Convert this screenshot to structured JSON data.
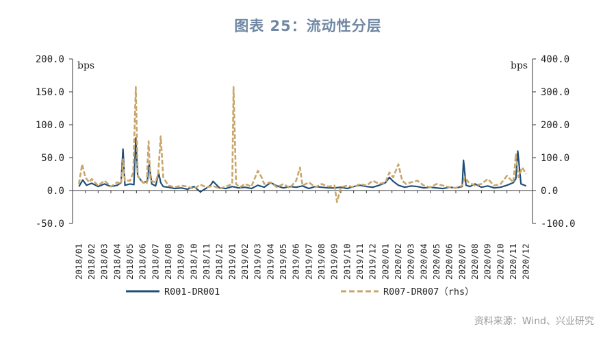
{
  "chart_data": {
    "type": "line",
    "title": "图表 25：流动性分层",
    "unit_left": "bps",
    "unit_right": "bps",
    "yleft": {
      "lim": [
        -50,
        200
      ],
      "ticks": [
        "-50.0",
        "0.0",
        "50.0",
        "100.0",
        "150.0",
        "200.0"
      ],
      "tick_values": [
        -50,
        0,
        50,
        100,
        150,
        200
      ]
    },
    "yright": {
      "lim": [
        -100,
        400
      ],
      "ticks": [
        "-100.0",
        "0.0",
        "100.0",
        "200.0",
        "300.0",
        "400.0"
      ],
      "tick_values": [
        -100,
        0,
        100,
        200,
        300,
        400
      ]
    },
    "x_categories": [
      "2018/01",
      "2018/02",
      "2018/03",
      "2018/04",
      "2018/05",
      "2018/06",
      "2018/07",
      "2018/08",
      "2018/09",
      "2018/10",
      "2018/11",
      "2018/12",
      "2019/01",
      "2019/02",
      "2019/03",
      "2019/04",
      "2019/05",
      "2019/06",
      "2019/07",
      "2019/08",
      "2019/09",
      "2019/10",
      "2019/11",
      "2019/12",
      "2020/01",
      "2020/02",
      "2020/03",
      "2020/04",
      "2020/05",
      "2020/06",
      "2020/07",
      "2020/08",
      "2020/09",
      "2020/10",
      "2020/11",
      "2020/12"
    ],
    "series": [
      {
        "name": "R001-DR001",
        "axis": "left",
        "color": "#1f4e79",
        "style": "solid",
        "x": [
          0,
          0.3,
          0.6,
          1,
          1.5,
          2,
          2.5,
          3,
          3.3,
          3.45,
          3.6,
          4,
          4.3,
          4.45,
          4.6,
          5,
          5.35,
          5.5,
          5.7,
          6,
          6.25,
          6.4,
          6.6,
          7,
          7.5,
          8,
          8.5,
          9,
          9.5,
          10,
          10.3,
          10.5,
          11,
          11.5,
          12,
          12.5,
          13,
          13.5,
          14,
          14.5,
          15,
          15.5,
          16,
          16.5,
          17,
          17.5,
          18,
          18.5,
          19,
          19.5,
          20,
          20.5,
          21,
          21.5,
          22,
          22.5,
          23,
          23.5,
          24,
          24.3,
          24.6,
          25,
          25.5,
          26,
          26.5,
          27,
          27.5,
          28,
          28.5,
          29,
          29.5,
          30,
          30.1,
          30.3,
          30.6,
          31,
          31.5,
          32,
          32.5,
          33,
          33.5,
          34,
          34.2,
          34.35,
          34.6,
          35
        ],
        "y": [
          6,
          16,
          8,
          11,
          6,
          10,
          6,
          8,
          12,
          63,
          8,
          10,
          9,
          80,
          22,
          12,
          14,
          40,
          10,
          7,
          26,
          12,
          6,
          5,
          3,
          4,
          2,
          6,
          -2,
          4,
          8,
          14,
          4,
          3,
          6,
          4,
          5,
          3,
          8,
          5,
          12,
          7,
          4,
          6,
          5,
          7,
          3,
          6,
          5,
          4,
          4,
          5,
          3,
          6,
          8,
          6,
          5,
          8,
          12,
          20,
          14,
          8,
          5,
          7,
          6,
          4,
          5,
          4,
          3,
          5,
          4,
          6,
          46,
          8,
          6,
          10,
          5,
          7,
          4,
          5,
          8,
          12,
          18,
          60,
          10,
          7
        ]
      },
      {
        "name": "R007-DR007 (rhs)",
        "axis": "right",
        "color": "#c9a66b",
        "style": "dashed",
        "x": [
          0,
          0.25,
          0.5,
          0.8,
          1,
          1.5,
          2,
          2.5,
          3,
          3.3,
          3.45,
          3.6,
          4,
          4.25,
          4.45,
          4.6,
          5,
          5.3,
          5.45,
          5.6,
          6,
          6.2,
          6.4,
          6.6,
          7,
          7.5,
          8,
          8.5,
          9,
          9.5,
          10,
          10.5,
          11,
          11.5,
          12,
          12.1,
          12.3,
          12.6,
          13,
          13.5,
          14,
          14.3,
          14.5,
          15,
          15.5,
          16,
          16.5,
          17,
          17.3,
          17.5,
          18,
          18.5,
          19,
          19.5,
          20,
          20.2,
          20.5,
          21,
          21.5,
          22,
          22.5,
          23,
          23.5,
          24,
          24.3,
          24.6,
          25,
          25.3,
          25.6,
          26,
          26.5,
          27,
          27.5,
          28,
          28.5,
          29,
          29.5,
          30,
          30.2,
          30.5,
          31,
          31.5,
          32,
          32.5,
          33,
          33.5,
          34,
          34.2,
          34.4,
          34.7,
          35
        ],
        "y": [
          20,
          80,
          40,
          25,
          35,
          15,
          30,
          12,
          25,
          20,
          95,
          30,
          30,
          55,
          315,
          45,
          25,
          20,
          150,
          30,
          25,
          50,
          165,
          40,
          15,
          10,
          15,
          12,
          5,
          18,
          10,
          14,
          6,
          12,
          20,
          315,
          20,
          10,
          20,
          12,
          60,
          40,
          20,
          25,
          10,
          20,
          8,
          30,
          70,
          15,
          25,
          10,
          20,
          12,
          15,
          -35,
          10,
          15,
          10,
          20,
          15,
          30,
          20,
          25,
          55,
          40,
          80,
          30,
          20,
          25,
          30,
          15,
          10,
          20,
          15,
          10,
          8,
          15,
          40,
          25,
          15,
          20,
          35,
          15,
          20,
          45,
          25,
          110,
          40,
          70,
          50
        ]
      }
    ],
    "legend": [
      "R001-DR001",
      "R007-DR007（rhs）"
    ],
    "legend_position": "bottom",
    "source": "资料来源：Wind、兴业研究"
  }
}
